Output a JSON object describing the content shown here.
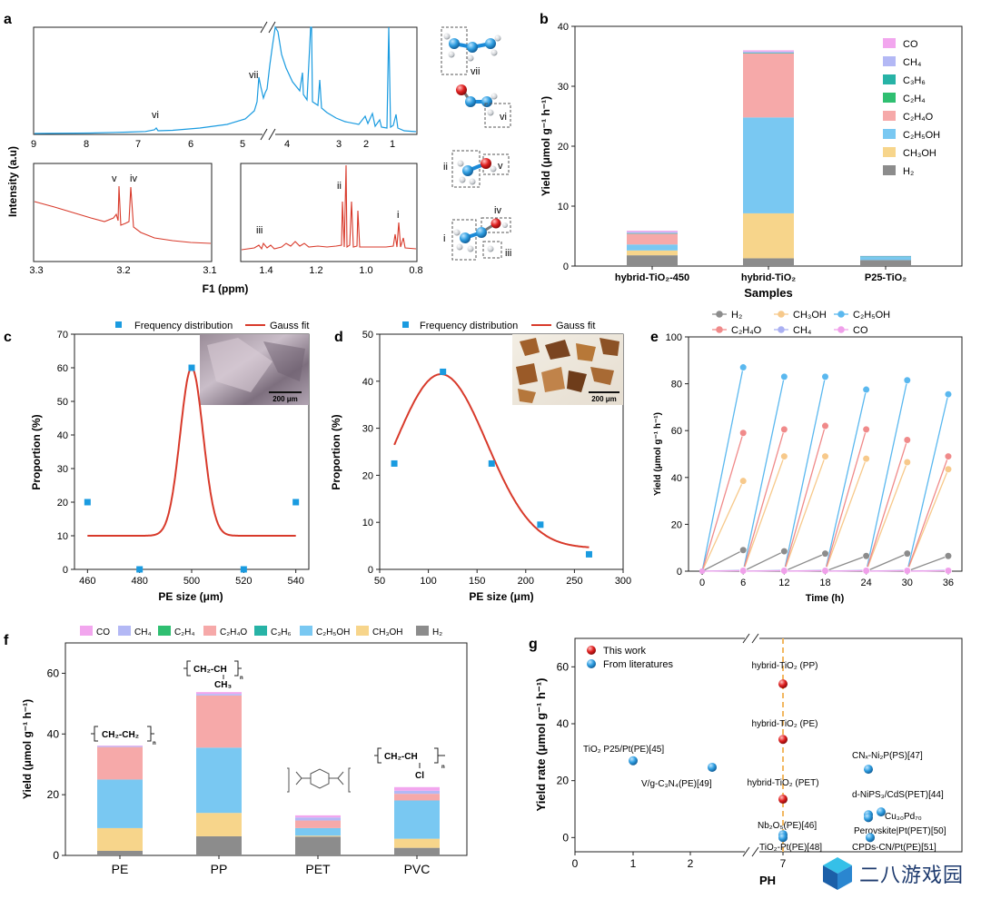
{
  "panels": {
    "a": "a",
    "b": "b",
    "c": "c",
    "d": "d",
    "e": "e",
    "f": "f",
    "g": "g"
  },
  "panel_a": {
    "ylabel": "Intensity (a.u)",
    "xlabel": "F1 (ppm)",
    "top_ticks": [
      "9",
      "8",
      "7",
      "6",
      "5",
      "4",
      "3",
      "2",
      "1"
    ],
    "inset1_ticks": [
      "3.3",
      "3.2",
      "3.1"
    ],
    "inset2_ticks": [
      "1.4",
      "1.2",
      "1.0",
      "0.8"
    ],
    "peak_labels": {
      "vi": "vi",
      "vii": "vii",
      "v": "v",
      "iv": "iv",
      "iii": "iii",
      "ii": "ii",
      "i": "i"
    },
    "molecule_labels": {
      "vii": "vii",
      "vi": "vi",
      "ii": "ii",
      "v": "v",
      "iv": "iv",
      "i": "i",
      "iii": "iii"
    },
    "top_color": "#1a9be0",
    "inset_color": "#d83a2b"
  },
  "chart_data": [
    {
      "id": "b",
      "type": "bar",
      "stacked": true,
      "categories": [
        "hybrid-TiO2-450",
        "hybrid-TiO2",
        "P25-TiO2"
      ],
      "category_labels": [
        "hybrid-TiO₂-450",
        "hybrid-TiO₂",
        "P25-TiO₂"
      ],
      "xlabel": "Samples",
      "ylabel": "Yield (μmol g⁻¹ h⁻¹)",
      "ylim": [
        0,
        40
      ],
      "yticks": [
        0,
        10,
        20,
        30,
        40
      ],
      "legend": "top-right",
      "series": [
        {
          "name": "H₂",
          "color": "#8c8c8c",
          "values": [
            1.8,
            1.3,
            1.0
          ]
        },
        {
          "name": "CH₃OH",
          "color": "#f7d58b",
          "values": [
            0.8,
            7.5,
            0
          ]
        },
        {
          "name": "C₂H₅OH",
          "color": "#79c8f2",
          "values": [
            1.0,
            16.0,
            0.5
          ]
        },
        {
          "name": "C₂H₄O",
          "color": "#f6a9a9",
          "values": [
            1.8,
            10.7,
            0
          ]
        },
        {
          "name": "C₂H₄",
          "color": "#2fbf71",
          "values": [
            0,
            0,
            0
          ]
        },
        {
          "name": "C₃H₆",
          "color": "#27b3a6",
          "values": [
            0.1,
            0.1,
            0.1
          ]
        },
        {
          "name": "CH₄",
          "color": "#b3b8f5",
          "values": [
            0.2,
            0.2,
            0.1
          ]
        },
        {
          "name": "CO",
          "color": "#f2a6ee",
          "values": [
            0.2,
            0.2,
            0
          ]
        }
      ],
      "legend_order": [
        "CO",
        "CH₄",
        "C₃H₆",
        "C₂H₄",
        "C₂H₄O",
        "C₂H₅OH",
        "CH₃OH",
        "H₂"
      ]
    },
    {
      "id": "c",
      "type": "scatter",
      "xlabel": "PE size (μm)",
      "ylabel": "Proportion (%)",
      "xlim": [
        455,
        545
      ],
      "ylim": [
        0,
        70
      ],
      "xticks": [
        460,
        480,
        500,
        520,
        540
      ],
      "yticks": [
        0,
        10,
        20,
        30,
        40,
        50,
        60,
        70
      ],
      "legend": [
        "Frequency distribution",
        "Gauss fit"
      ],
      "scale_bar": "200 μm",
      "points": {
        "x": [
          460,
          480,
          500,
          520,
          540
        ],
        "y": [
          20,
          0,
          60,
          0,
          20
        ]
      },
      "fit": {
        "y0": 10,
        "A": 50,
        "mu": 500,
        "sigma": 4.4
      }
    },
    {
      "id": "d",
      "type": "scatter",
      "xlabel": "PE size (μm)",
      "ylabel": "Proportion (%)",
      "xlim": [
        50,
        300
      ],
      "ylim": [
        0,
        50
      ],
      "xticks": [
        50,
        100,
        150,
        200,
        250,
        300
      ],
      "yticks": [
        0,
        10,
        20,
        30,
        40,
        50
      ],
      "legend": [
        "Frequency distribution",
        "Gauss fit"
      ],
      "scale_bar": "200 μm",
      "points": {
        "x": [
          65,
          115,
          165,
          215,
          265
        ],
        "y": [
          22.5,
          42,
          22.5,
          9.5,
          3.2
        ]
      },
      "fit": {
        "y0": 4.5,
        "A": 37,
        "mu": 113,
        "sigma": 47,
        "x_from": 65,
        "x_to": 265
      }
    },
    {
      "id": "e",
      "type": "line",
      "xlabel": "Time (h)",
      "ylabel": "Yield (μmol g⁻¹ h⁻¹)",
      "xlim": [
        -2,
        38
      ],
      "ylim": [
        0,
        100
      ],
      "xticks": [
        0,
        6,
        12,
        18,
        24,
        30,
        36
      ],
      "yticks": [
        0,
        20,
        40,
        60,
        80,
        100
      ],
      "legend": "top",
      "cycles": [
        [
          0,
          6
        ],
        [
          6,
          12
        ],
        [
          12,
          18
        ],
        [
          18,
          24
        ],
        [
          24,
          30
        ],
        [
          30,
          36
        ]
      ],
      "series": [
        {
          "name": "H₂",
          "color": "#8c8c8c",
          "values": [
            9,
            8.5,
            7.5,
            6.5,
            7.5,
            6.5
          ]
        },
        {
          "name": "CH₃OH",
          "color": "#f7c98b",
          "values": [
            38.5,
            49,
            49,
            48,
            46.5,
            43.5
          ]
        },
        {
          "name": "C₂H₅OH",
          "color": "#5ab8ef",
          "values": [
            87,
            83,
            83,
            77.5,
            81.5,
            75.5
          ]
        },
        {
          "name": "C₂H₄O",
          "color": "#f08a8a",
          "values": [
            59,
            60.5,
            62,
            60.5,
            56,
            49
          ]
        },
        {
          "name": "CH₄",
          "color": "#aab0f2",
          "values": [
            0.4,
            0.4,
            0.4,
            0.4,
            0.4,
            0.4
          ]
        },
        {
          "name": "CO",
          "color": "#f0a0ea",
          "values": [
            0.2,
            0.2,
            0.2,
            0.2,
            0.2,
            0.2
          ]
        }
      ],
      "legend_order": [
        "H₂",
        "CH₃OH",
        "C₂H₅OH",
        "C₂H₄O",
        "CH₄",
        "CO"
      ]
    },
    {
      "id": "f",
      "type": "bar",
      "stacked": true,
      "categories": [
        "PE",
        "PP",
        "PET",
        "PVC"
      ],
      "ylabel": "Yield (μmol g⁻¹ h⁻¹)",
      "ylim": [
        0,
        60
      ],
      "yticks": [
        0,
        20,
        40,
        60
      ],
      "legend": "top",
      "series": [
        {
          "name": "H₂",
          "color": "#8c8c8c",
          "values": [
            1.5,
            6.3,
            6.2,
            2.5
          ]
        },
        {
          "name": "CH₃OH",
          "color": "#f7d58b",
          "values": [
            7.5,
            7.7,
            0.3,
            3.0
          ]
        },
        {
          "name": "C₂H₅OH",
          "color": "#79c8f2",
          "values": [
            16,
            21.5,
            2.5,
            12.6
          ]
        },
        {
          "name": "C₃H₆",
          "color": "#27b3a6",
          "values": [
            0,
            0,
            0,
            0
          ]
        },
        {
          "name": "C₂H₄O",
          "color": "#f6a9a9",
          "values": [
            10.7,
            17.2,
            2.5,
            2.2
          ]
        },
        {
          "name": "C₂H₄",
          "color": "#2fbf71",
          "values": [
            0,
            0,
            0,
            0
          ]
        },
        {
          "name": "CH₄",
          "color": "#b3b8f5",
          "values": [
            0.3,
            0.5,
            1.0,
            1.0
          ]
        },
        {
          "name": "CO",
          "color": "#f2a6ee",
          "values": [
            0.2,
            0.6,
            0.7,
            1.2
          ]
        }
      ],
      "legend_order": [
        "CO",
        "CH₄",
        "C₂H₄",
        "C₂H₄O",
        "C₃H₆",
        "C₂H₅OH",
        "CH₃OH",
        "H₂"
      ],
      "structures": {
        "PE": "CH₂-CH₂",
        "PP_top": "CH₂-CH",
        "PP_bottom": "CH₃",
        "PVC_top": "CH₂-CH",
        "PVC_bottom": "Cl",
        "n": "n"
      }
    },
    {
      "id": "g",
      "type": "scatter",
      "xlabel": "PH",
      "ylabel": "Yield rate (μmol g⁻¹ h⁻¹)",
      "ylim": [
        -5,
        70
      ],
      "yticks": [
        0,
        20,
        40,
        60
      ],
      "xticks": [
        "0",
        "1",
        "2",
        "7"
      ],
      "axis_break": true,
      "legend": [
        "This work",
        "From literatures"
      ],
      "series": [
        {
          "name": "This work",
          "color": "#e02020",
          "points": [
            {
              "x": 7,
              "y": 54,
              "label": "hybrid-TiO₂ (PP)"
            },
            {
              "x": 7,
              "y": 34.5,
              "label": "hybrid-TiO₂ (PE)"
            },
            {
              "x": 7,
              "y": 13.5,
              "label": "hybrid-TiO₂ (PET)"
            }
          ]
        },
        {
          "name": "From literatures",
          "color": "#2e9de0",
          "points": [
            {
              "x": 1,
              "y": 27,
              "label": "TiO₂ P25/Pt(PE)[45]"
            },
            {
              "x": 2.3,
              "y": 24.7,
              "label": "V/g-C₃N₄(PE)[49]"
            },
            {
              "x": 7,
              "y": 1,
              "label": "Nb₂O₅(PE)[46]"
            },
            {
              "x": 7,
              "y": 0,
              "label": "TiO₂-Pt(PE)[48]"
            },
            {
              "x": "R1",
              "y": 24,
              "label": "CNₓ-Ni₂P(PS)[47]"
            },
            {
              "x": "R2",
              "y": 9,
              "label": "Cu₃₀Pd₇₀"
            },
            {
              "x": "R3",
              "y": 8,
              "label": "d-NiPS₃/CdS(PET)[44]"
            },
            {
              "x": "R4",
              "y": 7,
              "label": "Perovskite|Pt(PET)[50]"
            },
            {
              "x": "R5",
              "y": 0,
              "label": "CPDs-CN/Pt(PE)[51]"
            }
          ]
        }
      ]
    }
  ],
  "watermark": {
    "text": "二八游戏园"
  }
}
